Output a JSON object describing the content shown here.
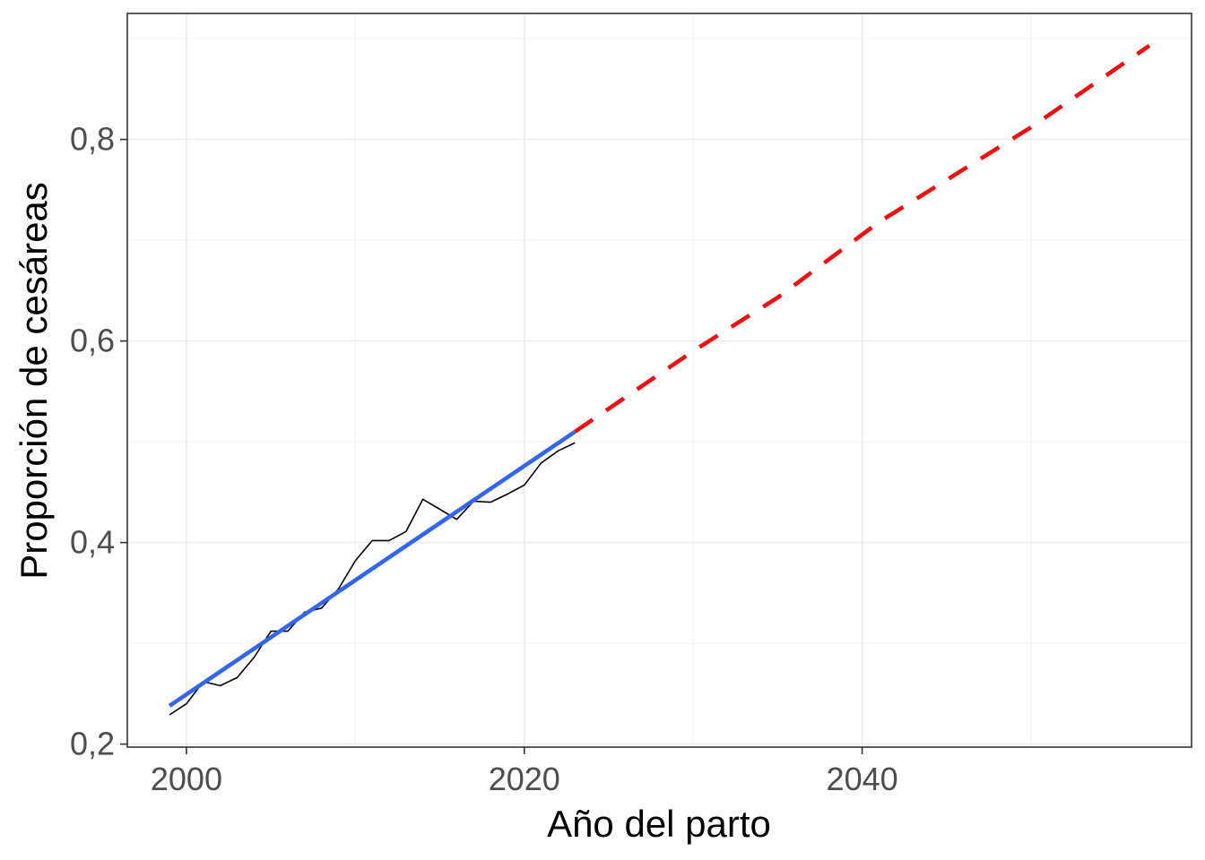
{
  "chart_data": {
    "type": "line",
    "xlabel": "Año del parto",
    "ylabel": "Proporción de cesáreas",
    "xlim": [
      1996.5,
      2059.5
    ],
    "ylim": [
      0.197,
      0.925
    ],
    "x_ticks": [
      2000,
      2020,
      2040
    ],
    "x_tick_labels": [
      "2000",
      "2020",
      "2040"
    ],
    "y_ticks": [
      0.2,
      0.4,
      0.6,
      0.8
    ],
    "y_tick_labels": [
      "0,2",
      "0,4",
      "0,6",
      "0,8"
    ],
    "grid": true,
    "legend": "none",
    "series": [
      {
        "style": "solid-thin",
        "color": "#000000",
        "x": [
          1999,
          2000,
          2001,
          2002,
          2003,
          2004,
          2005,
          2006,
          2007,
          2008,
          2009,
          2010,
          2011,
          2012,
          2013,
          2014,
          2015,
          2016,
          2017,
          2018,
          2019,
          2020,
          2021,
          2022,
          2023
        ],
        "y": [
          0.229,
          0.24,
          0.262,
          0.258,
          0.266,
          0.286,
          0.312,
          0.312,
          0.331,
          0.335,
          0.354,
          0.382,
          0.402,
          0.402,
          0.411,
          0.443,
          0.433,
          0.423,
          0.441,
          0.44,
          0.448,
          0.457,
          0.479,
          0.491,
          0.499
        ]
      },
      {
        "style": "solid-thick",
        "color": "#3366ee",
        "x": [
          1999,
          2023
        ],
        "y": [
          0.238,
          0.51
        ]
      },
      {
        "style": "dashed",
        "color": "#ee1111",
        "x": [
          2023,
          2030,
          2035,
          2041,
          2050,
          2057
        ],
        "y": [
          0.51,
          0.59,
          0.643,
          0.718,
          0.812,
          0.893
        ]
      }
    ]
  }
}
